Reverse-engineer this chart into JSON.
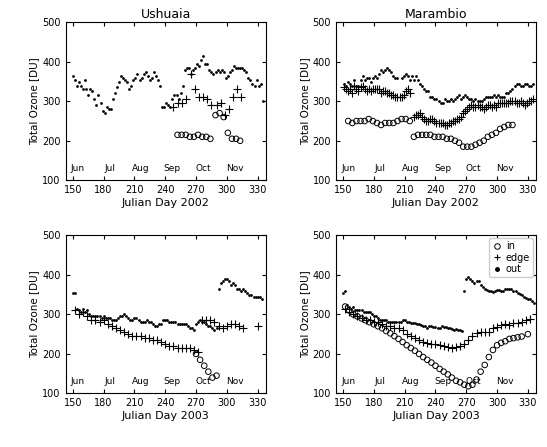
{
  "title_left": "Ushuaia",
  "title_right": "Marambio",
  "xlabel_2002": "Julian Day 2002",
  "xlabel_2003": "Julian Day 2003",
  "ylabel": "Total Ozone [DU]",
  "xlim": [
    143,
    338
  ],
  "ylim": [
    100,
    500
  ],
  "xticks": [
    150,
    180,
    210,
    240,
    270,
    300,
    330
  ],
  "yticks": [
    100,
    200,
    300,
    400,
    500
  ],
  "month_labels": [
    "Jun",
    "Jul",
    "Aug",
    "Sep",
    "Oct",
    "Nov"
  ],
  "month_positions": [
    155,
    186,
    216,
    247,
    277,
    308
  ],
  "ushuaia_2002_out_x": [
    150,
    152,
    154,
    156,
    158,
    160,
    162,
    163,
    165,
    167,
    169,
    171,
    173,
    175,
    177,
    179,
    181,
    183,
    185,
    187,
    189,
    191,
    193,
    195,
    197,
    199,
    201,
    203,
    205,
    207,
    209,
    211,
    213,
    215,
    217,
    219,
    221,
    223,
    225,
    227,
    229,
    231,
    233,
    235,
    237,
    239,
    241,
    243,
    245,
    247,
    249,
    251,
    253,
    255,
    257,
    259,
    261,
    263,
    265,
    267,
    269,
    271,
    273,
    275,
    277,
    279,
    281,
    283,
    285,
    287,
    289,
    291,
    293,
    295,
    297,
    299,
    301,
    303,
    305,
    307,
    309,
    311,
    313,
    315,
    317,
    319,
    321,
    323,
    325,
    327,
    329,
    331,
    333,
    335
  ],
  "ushuaia_2002_out_y": [
    365,
    355,
    340,
    350,
    340,
    330,
    355,
    330,
    315,
    330,
    325,
    305,
    290,
    315,
    295,
    275,
    270,
    285,
    280,
    280,
    305,
    320,
    335,
    350,
    365,
    360,
    355,
    350,
    330,
    340,
    355,
    360,
    370,
    355,
    360,
    370,
    375,
    365,
    355,
    360,
    375,
    365,
    355,
    340,
    285,
    285,
    295,
    290,
    285,
    305,
    315,
    315,
    305,
    320,
    340,
    380,
    385,
    385,
    370,
    380,
    385,
    395,
    390,
    405,
    415,
    395,
    395,
    380,
    375,
    370,
    375,
    380,
    375,
    380,
    375,
    360,
    365,
    375,
    380,
    390,
    385,
    385,
    385,
    385,
    380,
    375,
    360,
    355,
    345,
    340,
    355,
    340,
    345,
    300
  ],
  "ushuaia_2002_edge_x": [
    248,
    252,
    256,
    260,
    265,
    269,
    273,
    277,
    281,
    285,
    290,
    294,
    298,
    302,
    306,
    310,
    314
  ],
  "ushuaia_2002_edge_y": [
    285,
    295,
    295,
    305,
    370,
    330,
    310,
    310,
    305,
    290,
    290,
    295,
    265,
    280,
    310,
    330,
    310
  ],
  "ushuaia_2002_in_x": [
    252,
    256,
    260,
    264,
    268,
    272,
    276,
    280,
    284,
    289,
    293,
    297,
    301,
    305,
    309,
    313
  ],
  "ushuaia_2002_in_y": [
    215,
    215,
    215,
    210,
    210,
    215,
    210,
    210,
    205,
    265,
    270,
    260,
    220,
    205,
    205,
    200
  ],
  "marambio_2002_out_x": [
    151,
    153,
    155,
    157,
    159,
    161,
    163,
    165,
    167,
    169,
    171,
    173,
    175,
    177,
    179,
    181,
    183,
    185,
    187,
    189,
    191,
    193,
    195,
    197,
    199,
    201,
    203,
    207,
    209,
    211,
    213,
    215,
    217,
    219,
    221,
    223,
    225,
    227,
    229,
    231,
    233,
    235,
    237,
    239,
    241,
    243,
    245,
    247,
    249,
    251,
    253,
    255,
    257,
    259,
    261,
    263,
    265,
    267,
    269,
    271,
    273,
    275,
    277,
    279,
    281,
    283,
    285,
    287,
    289,
    291,
    293,
    295,
    297,
    299,
    301,
    303,
    305,
    307,
    309,
    311,
    313,
    315,
    317,
    319,
    321,
    323,
    325,
    327,
    329,
    331,
    333,
    335
  ],
  "marambio_2002_out_y": [
    345,
    340,
    350,
    345,
    340,
    355,
    340,
    340,
    355,
    365,
    355,
    360,
    360,
    350,
    360,
    365,
    360,
    370,
    380,
    375,
    380,
    385,
    380,
    375,
    365,
    360,
    360,
    360,
    365,
    370,
    365,
    355,
    365,
    355,
    365,
    355,
    345,
    340,
    330,
    325,
    325,
    310,
    310,
    305,
    305,
    300,
    295,
    295,
    305,
    300,
    300,
    305,
    300,
    305,
    310,
    315,
    305,
    310,
    315,
    310,
    305,
    305,
    300,
    305,
    300,
    300,
    300,
    305,
    310,
    310,
    310,
    310,
    315,
    310,
    315,
    310,
    310,
    310,
    320,
    320,
    325,
    330,
    340,
    345,
    345,
    340,
    340,
    345,
    345,
    340,
    340,
    345
  ],
  "marambio_2002_edge_x": [
    151,
    153,
    155,
    157,
    159,
    161,
    163,
    165,
    167,
    169,
    171,
    173,
    175,
    177,
    179,
    181,
    183,
    185,
    187,
    189,
    191,
    193,
    195,
    197,
    199,
    201,
    203,
    205,
    207,
    209,
    211,
    213,
    215,
    219,
    221,
    223,
    225,
    227,
    229,
    231,
    233,
    235,
    237,
    239,
    241,
    243,
    245,
    247,
    249,
    251,
    253,
    255,
    257,
    259,
    261,
    263,
    265,
    267,
    269,
    271,
    273,
    275,
    277,
    279,
    281,
    283,
    285,
    287,
    289,
    291,
    293,
    295,
    297,
    299,
    301,
    303,
    305,
    307,
    309,
    311,
    313,
    315,
    317,
    319,
    321,
    323,
    325,
    327,
    329,
    331,
    333,
    335
  ],
  "marambio_2002_edge_y": [
    335,
    330,
    325,
    330,
    320,
    340,
    330,
    325,
    335,
    340,
    330,
    325,
    330,
    325,
    330,
    330,
    330,
    330,
    320,
    325,
    325,
    320,
    320,
    315,
    315,
    310,
    310,
    310,
    310,
    315,
    325,
    330,
    320,
    260,
    265,
    265,
    270,
    260,
    255,
    250,
    250,
    255,
    255,
    250,
    245,
    245,
    245,
    245,
    240,
    240,
    245,
    245,
    250,
    250,
    255,
    255,
    260,
    270,
    275,
    280,
    285,
    290,
    285,
    285,
    290,
    285,
    285,
    280,
    285,
    290,
    290,
    285,
    290,
    285,
    295,
    295,
    295,
    295,
    295,
    295,
    300,
    300,
    300,
    295,
    295,
    300,
    295,
    290,
    295,
    300,
    300,
    305
  ],
  "marambio_2002_in_x": [
    155,
    159,
    163,
    167,
    171,
    175,
    179,
    183,
    187,
    191,
    195,
    199,
    203,
    207,
    211,
    215,
    219,
    223,
    227,
    231,
    235,
    239,
    243,
    247,
    251,
    255,
    259,
    263,
    267,
    271,
    275,
    279,
    283,
    287,
    291,
    295,
    299,
    303,
    307,
    311,
    315
  ],
  "marambio_2002_in_y": [
    250,
    245,
    250,
    250,
    250,
    255,
    250,
    245,
    240,
    245,
    245,
    245,
    250,
    255,
    255,
    250,
    210,
    215,
    215,
    215,
    215,
    210,
    210,
    210,
    205,
    205,
    200,
    195,
    185,
    185,
    185,
    190,
    195,
    200,
    210,
    215,
    220,
    230,
    235,
    240,
    240
  ],
  "ushuaia_2003_out_x": [
    150,
    152,
    154,
    156,
    158,
    160,
    162,
    164,
    166,
    168,
    170,
    172,
    174,
    176,
    178,
    180,
    182,
    184,
    186,
    188,
    190,
    192,
    194,
    196,
    198,
    200,
    202,
    204,
    206,
    208,
    210,
    212,
    214,
    216,
    218,
    220,
    222,
    224,
    226,
    228,
    230,
    232,
    234,
    236,
    238,
    240,
    242,
    244,
    246,
    248,
    250,
    252,
    254,
    256,
    258,
    260,
    262,
    264,
    266,
    268,
    270,
    272,
    274,
    276,
    278,
    280,
    282,
    284,
    286,
    288,
    290,
    292,
    294,
    296,
    298,
    300,
    302,
    304,
    306,
    308,
    310,
    312,
    314,
    316,
    318,
    320,
    322,
    324,
    326,
    328,
    330,
    332,
    334
  ],
  "ushuaia_2003_out_y": [
    355,
    355,
    315,
    310,
    305,
    315,
    305,
    310,
    300,
    295,
    295,
    295,
    295,
    295,
    290,
    295,
    290,
    290,
    290,
    285,
    285,
    285,
    290,
    295,
    295,
    300,
    295,
    290,
    285,
    285,
    290,
    290,
    285,
    280,
    280,
    280,
    285,
    280,
    280,
    275,
    270,
    270,
    275,
    275,
    285,
    285,
    285,
    280,
    280,
    280,
    280,
    275,
    275,
    275,
    275,
    275,
    270,
    265,
    265,
    260,
    275,
    280,
    285,
    280,
    280,
    275,
    270,
    270,
    265,
    260,
    265,
    365,
    380,
    385,
    390,
    390,
    385,
    375,
    380,
    375,
    365,
    365,
    360,
    365,
    360,
    355,
    350,
    350,
    345,
    345,
    345,
    345,
    340
  ],
  "ushuaia_2003_edge_x": [
    152,
    156,
    160,
    164,
    168,
    172,
    176,
    180,
    184,
    188,
    192,
    196,
    200,
    204,
    208,
    212,
    216,
    220,
    224,
    228,
    232,
    236,
    240,
    244,
    248,
    252,
    256,
    260,
    264,
    268,
    272,
    276,
    280,
    284,
    288,
    292,
    296,
    300,
    304,
    308,
    312,
    316,
    330
  ],
  "ushuaia_2003_edge_y": [
    310,
    300,
    305,
    295,
    285,
    285,
    280,
    285,
    275,
    270,
    265,
    260,
    255,
    250,
    245,
    245,
    245,
    240,
    240,
    235,
    235,
    230,
    225,
    220,
    220,
    215,
    215,
    215,
    215,
    210,
    205,
    285,
    285,
    285,
    280,
    270,
    265,
    270,
    275,
    275,
    270,
    265,
    270
  ],
  "ushuaia_2003_in_x": [
    270,
    274,
    278,
    282,
    286,
    290
  ],
  "ushuaia_2003_in_y": [
    200,
    185,
    170,
    155,
    140,
    145
  ],
  "marambio_2003_out_x": [
    150,
    152,
    154,
    156,
    158,
    160,
    162,
    164,
    166,
    168,
    170,
    172,
    174,
    176,
    178,
    180,
    182,
    184,
    186,
    188,
    190,
    192,
    194,
    196,
    198,
    200,
    202,
    204,
    206,
    208,
    210,
    212,
    214,
    216,
    218,
    220,
    222,
    224,
    226,
    228,
    230,
    232,
    234,
    236,
    238,
    240,
    242,
    244,
    246,
    248,
    250,
    252,
    254,
    256,
    258,
    260,
    262,
    264,
    266,
    268,
    270,
    272,
    274,
    276,
    278,
    280,
    282,
    284,
    286,
    288,
    290,
    292,
    294,
    296,
    298,
    300,
    302,
    304,
    306,
    308,
    310,
    312,
    314,
    316,
    318,
    320,
    322,
    324,
    326,
    328,
    330,
    332,
    334,
    336
  ],
  "marambio_2003_out_y": [
    355,
    360,
    325,
    320,
    315,
    320,
    310,
    310,
    310,
    310,
    305,
    305,
    305,
    305,
    300,
    295,
    295,
    290,
    285,
    285,
    285,
    285,
    280,
    280,
    280,
    280,
    280,
    280,
    280,
    285,
    285,
    280,
    280,
    278,
    278,
    278,
    275,
    275,
    272,
    270,
    270,
    265,
    270,
    270,
    268,
    268,
    265,
    265,
    270,
    268,
    268,
    265,
    265,
    262,
    260,
    262,
    260,
    260,
    258,
    360,
    390,
    395,
    390,
    385,
    380,
    385,
    385,
    375,
    370,
    365,
    362,
    360,
    360,
    358,
    360,
    362,
    362,
    360,
    360,
    365,
    365,
    365,
    365,
    360,
    360,
    355,
    352,
    350,
    345,
    342,
    340,
    338,
    335,
    330
  ],
  "marambio_2003_edge_x": [
    152,
    156,
    160,
    164,
    168,
    172,
    176,
    180,
    184,
    188,
    192,
    196,
    200,
    204,
    208,
    212,
    216,
    220,
    224,
    228,
    232,
    236,
    240,
    244,
    248,
    252,
    256,
    260,
    264,
    268,
    272,
    276,
    280,
    284,
    288,
    292,
    296,
    300,
    304,
    308,
    312,
    316,
    320,
    324,
    328,
    332
  ],
  "marambio_2003_edge_y": [
    315,
    305,
    300,
    295,
    290,
    285,
    285,
    280,
    280,
    275,
    270,
    270,
    265,
    265,
    260,
    250,
    245,
    240,
    235,
    230,
    228,
    225,
    225,
    222,
    220,
    218,
    215,
    218,
    220,
    225,
    235,
    245,
    252,
    255,
    255,
    255,
    265,
    268,
    272,
    275,
    272,
    278,
    278,
    280,
    285,
    288
  ],
  "marambio_2003_in_x": [
    152,
    156,
    160,
    164,
    168,
    172,
    176,
    180,
    184,
    188,
    192,
    196,
    200,
    204,
    208,
    212,
    216,
    220,
    224,
    228,
    232,
    236,
    240,
    244,
    248,
    252,
    256,
    260,
    264,
    268,
    272,
    276,
    280,
    284,
    288,
    292,
    296,
    300,
    304,
    308,
    312,
    316,
    320,
    324,
    330
  ],
  "marambio_2003_in_y": [
    320,
    310,
    300,
    295,
    290,
    285,
    280,
    275,
    270,
    265,
    258,
    252,
    245,
    238,
    230,
    222,
    215,
    208,
    200,
    192,
    185,
    178,
    170,
    162,
    155,
    148,
    140,
    132,
    128,
    122,
    118,
    122,
    135,
    155,
    172,
    192,
    210,
    222,
    228,
    232,
    238,
    240,
    242,
    244,
    250
  ],
  "marker_out": ".",
  "marker_edge": "+",
  "marker_in": "o",
  "color": "black",
  "markersize_dot": 16,
  "markersize_plus": 36,
  "markersize_circle": 16,
  "legend_labels": [
    "in",
    "edge",
    "out"
  ]
}
